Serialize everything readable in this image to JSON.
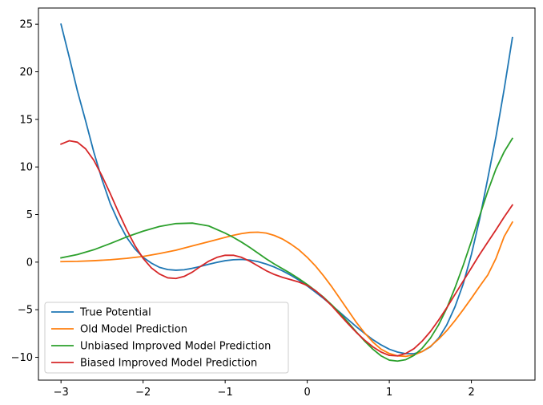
{
  "chart_data": {
    "type": "line",
    "title": "",
    "xlabel": "",
    "ylabel": "",
    "xlim": [
      -3.275,
      2.775
    ],
    "ylim": [
      -12.4,
      26.7
    ],
    "xticks": [
      -3,
      -2,
      -1,
      0,
      1,
      2
    ],
    "xtick_labels": [
      "−3",
      "−2",
      "−1",
      "0",
      "1",
      "2"
    ],
    "yticks": [
      -10,
      -5,
      0,
      5,
      10,
      15,
      20,
      25
    ],
    "ytick_labels": [
      "−10",
      "−5",
      "0",
      "5",
      "10",
      "15",
      "20",
      "25"
    ],
    "grid": false,
    "legend_position": "lower-left",
    "series": [
      {
        "name": "True Potential",
        "color": "#1f77b4",
        "x": [
          -3,
          -2.9,
          -2.8,
          -2.7,
          -2.6,
          -2.5,
          -2.4,
          -2.3,
          -2.2,
          -2.1,
          -2,
          -1.9,
          -1.8,
          -1.7,
          -1.6,
          -1.5,
          -1.4,
          -1.3,
          -1.2,
          -1.1,
          -1,
          -0.9,
          -0.8,
          -0.7,
          -0.6,
          -0.5,
          -0.4,
          -0.3,
          -0.2,
          -0.1,
          0,
          0.1,
          0.2,
          0.3,
          0.4,
          0.5,
          0.6,
          0.7,
          0.8,
          0.9,
          1,
          1.1,
          1.2,
          1.3,
          1.4,
          1.5,
          1.6,
          1.7,
          1.8,
          1.9,
          2,
          2.1,
          2.2,
          2.3,
          2.4,
          2.5
        ],
        "y": [
          25,
          21.55,
          17.98,
          14.83,
          11.55,
          8.66,
          6.15,
          4.22,
          2.6,
          1.4,
          0.5,
          -0.1,
          -0.55,
          -0.78,
          -0.85,
          -0.8,
          -0.65,
          -0.45,
          -0.22,
          -0.02,
          0.15,
          0.25,
          0.28,
          0.22,
          0.05,
          -0.2,
          -0.52,
          -0.92,
          -1.38,
          -1.9,
          -2.5,
          -3.15,
          -3.82,
          -4.55,
          -5.3,
          -6.05,
          -6.8,
          -7.5,
          -8.15,
          -8.7,
          -9.15,
          -9.45,
          -9.62,
          -9.62,
          -9.4,
          -8.9,
          -8,
          -6.6,
          -4.7,
          -2.3,
          0.8,
          4.5,
          8.8,
          13.2,
          18.2,
          23.6
        ]
      },
      {
        "name": "Old Model Prediction",
        "color": "#ff7f0e",
        "x": [
          -3,
          -2.8,
          -2.6,
          -2.4,
          -2.2,
          -2,
          -1.8,
          -1.6,
          -1.4,
          -1.2,
          -1,
          -0.9,
          -0.8,
          -0.7,
          -0.6,
          -0.5,
          -0.4,
          -0.3,
          -0.2,
          -0.1,
          0,
          0.1,
          0.2,
          0.3,
          0.4,
          0.5,
          0.6,
          0.7,
          0.8,
          0.9,
          1,
          1.1,
          1.2,
          1.3,
          1.4,
          1.5,
          1.6,
          1.7,
          1.8,
          1.9,
          2,
          2.1,
          2.2,
          2.3,
          2.4,
          2.5
        ],
        "y": [
          0.05,
          0.08,
          0.15,
          0.25,
          0.4,
          0.6,
          0.9,
          1.25,
          1.7,
          2.15,
          2.6,
          2.82,
          3,
          3.12,
          3.15,
          3.05,
          2.8,
          2.42,
          1.9,
          1.28,
          0.5,
          -0.4,
          -1.45,
          -2.6,
          -3.85,
          -5.1,
          -6.35,
          -7.45,
          -8.4,
          -9.15,
          -9.6,
          -9.85,
          -9.9,
          -9.75,
          -9.4,
          -8.85,
          -8.1,
          -7.2,
          -6.15,
          -5,
          -3.8,
          -2.55,
          -1.35,
          0.4,
          2.7,
          4.2
        ]
      },
      {
        "name": "Unbiased Improved Model Prediction",
        "color": "#2ca02c",
        "x": [
          -3,
          -2.8,
          -2.6,
          -2.4,
          -2.2,
          -2,
          -1.8,
          -1.6,
          -1.4,
          -1.2,
          -1,
          -0.9,
          -0.8,
          -0.7,
          -0.6,
          -0.5,
          -0.4,
          -0.3,
          -0.2,
          -0.1,
          0,
          0.1,
          0.2,
          0.3,
          0.4,
          0.5,
          0.6,
          0.7,
          0.8,
          0.9,
          1,
          1.1,
          1.2,
          1.3,
          1.4,
          1.5,
          1.6,
          1.7,
          1.8,
          1.9,
          2,
          2.1,
          2.2,
          2.3,
          2.4,
          2.5
        ],
        "y": [
          0.45,
          0.8,
          1.3,
          1.95,
          2.65,
          3.25,
          3.75,
          4.05,
          4.1,
          3.8,
          3.05,
          2.6,
          2.1,
          1.55,
          0.95,
          0.35,
          -0.2,
          -0.7,
          -1.2,
          -1.75,
          -2.35,
          -3,
          -3.7,
          -4.5,
          -5.4,
          -6.35,
          -7.35,
          -8.3,
          -9.15,
          -9.85,
          -10.3,
          -10.4,
          -10.25,
          -9.8,
          -9.05,
          -8,
          -6.6,
          -4.85,
          -2.7,
          -0.35,
          2.2,
          4.85,
          7.45,
          9.8,
          11.6,
          13
        ]
      },
      {
        "name": "Biased Improved Model Prediction",
        "color": "#d62728",
        "x": [
          -3,
          -2.9,
          -2.8,
          -2.7,
          -2.6,
          -2.5,
          -2.4,
          -2.3,
          -2.2,
          -2.1,
          -2,
          -1.9,
          -1.8,
          -1.7,
          -1.6,
          -1.5,
          -1.4,
          -1.3,
          -1.2,
          -1.1,
          -1,
          -0.9,
          -0.8,
          -0.7,
          -0.6,
          -0.5,
          -0.4,
          -0.3,
          -0.2,
          -0.1,
          0,
          0.1,
          0.2,
          0.3,
          0.4,
          0.5,
          0.6,
          0.7,
          0.8,
          0.9,
          1,
          1.1,
          1.2,
          1.3,
          1.4,
          1.5,
          1.6,
          1.7,
          1.8,
          1.9,
          2,
          2.1,
          2.2,
          2.3,
          2.4,
          2.5
        ],
        "y": [
          12.4,
          12.75,
          12.6,
          11.9,
          10.7,
          9.05,
          7.2,
          5.25,
          3.4,
          1.75,
          0.4,
          -0.6,
          -1.25,
          -1.65,
          -1.72,
          -1.5,
          -1.05,
          -0.45,
          0.1,
          0.5,
          0.72,
          0.72,
          0.5,
          0.1,
          -0.4,
          -0.9,
          -1.3,
          -1.6,
          -1.85,
          -2.1,
          -2.45,
          -3,
          -3.75,
          -4.6,
          -5.55,
          -6.5,
          -7.4,
          -8.2,
          -8.9,
          -9.45,
          -9.8,
          -9.85,
          -9.6,
          -9.1,
          -8.3,
          -7.3,
          -6.1,
          -4.8,
          -3.4,
          -2,
          -0.6,
          0.8,
          2.1,
          3.4,
          4.75,
          6
        ]
      }
    ]
  }
}
